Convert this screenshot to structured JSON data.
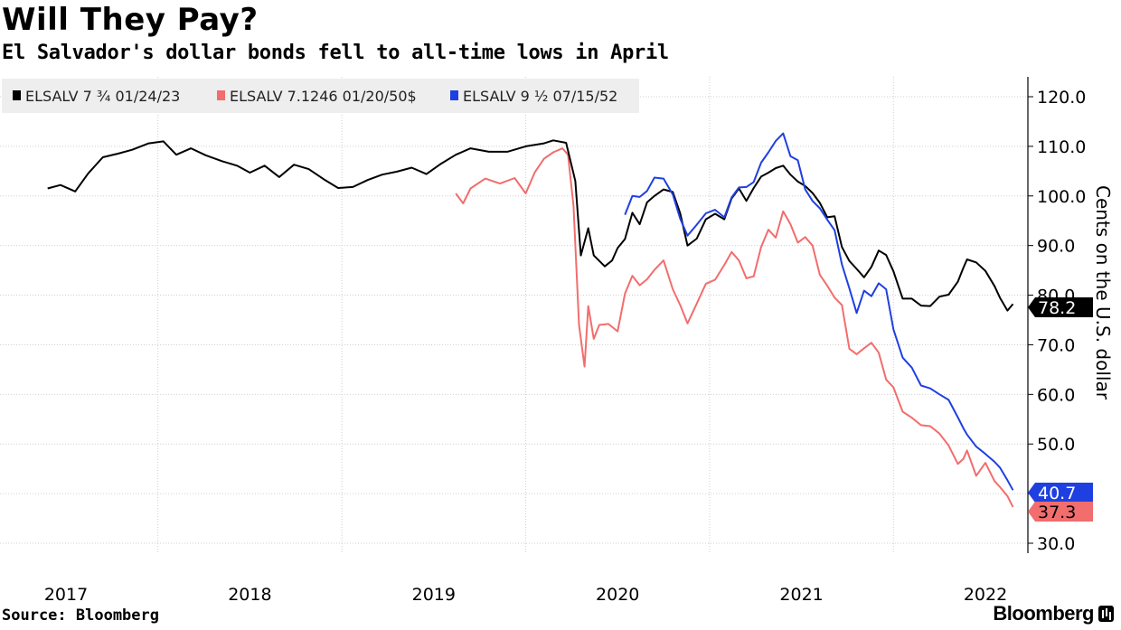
{
  "header": {
    "title": "Will They Pay?",
    "subtitle": "El Salvador's dollar bonds fell to all-time lows in April"
  },
  "footer": {
    "source": "Source: Bloomberg",
    "brand": "Bloomberg"
  },
  "chart_data": {
    "type": "line",
    "title": "Will They Pay?",
    "subtitle": "El Salvador's dollar bonds fell to all-time lows in April",
    "xlabel": "",
    "ylabel": "Cents on the U.S. dollar",
    "ylim": [
      27,
      125
    ],
    "xlim": [
      2016.9,
      2022.33
    ],
    "yticks": [
      30,
      40,
      50,
      60,
      70,
      80,
      90,
      100,
      110,
      120
    ],
    "ytick_labels": [
      "30.0",
      "40.0",
      "50.0",
      "60.0",
      "70.0",
      "80.0",
      "90.0",
      "100.0",
      "110.0",
      "120.0"
    ],
    "xtick_labels": [
      "2017",
      "2018",
      "2019",
      "2020",
      "2021",
      "2022"
    ],
    "xtick_label_positions": [
      2017.0,
      2018.0,
      2019.0,
      2020.0,
      2021.0,
      2022.0
    ],
    "year_boundaries": [
      2017.5,
      2018.5,
      2019.5,
      2020.5,
      2021.5
    ],
    "grid": true,
    "legend_position": "top-left",
    "series": [
      {
        "name": "ELSALV 7 ¾ 01/24/23",
        "color": "#000000",
        "last_value": "78.2",
        "points": [
          [
            2016.9,
            101.5
          ],
          [
            2016.97,
            102.2
          ],
          [
            2017.05,
            100.9
          ],
          [
            2017.12,
            104.5
          ],
          [
            2017.2,
            107.8
          ],
          [
            2017.28,
            108.5
          ],
          [
            2017.36,
            109.3
          ],
          [
            2017.45,
            110.6
          ],
          [
            2017.53,
            111.0
          ],
          [
            2017.6,
            108.3
          ],
          [
            2017.68,
            109.6
          ],
          [
            2017.76,
            108.2
          ],
          [
            2017.85,
            107.0
          ],
          [
            2017.93,
            106.1
          ],
          [
            2018.0,
            104.7
          ],
          [
            2018.08,
            106.1
          ],
          [
            2018.16,
            103.8
          ],
          [
            2018.24,
            106.3
          ],
          [
            2018.32,
            105.4
          ],
          [
            2018.4,
            103.4
          ],
          [
            2018.48,
            101.6
          ],
          [
            2018.56,
            101.8
          ],
          [
            2018.64,
            103.2
          ],
          [
            2018.72,
            104.3
          ],
          [
            2018.8,
            104.9
          ],
          [
            2018.88,
            105.7
          ],
          [
            2018.96,
            104.4
          ],
          [
            2019.04,
            106.5
          ],
          [
            2019.12,
            108.3
          ],
          [
            2019.2,
            109.6
          ],
          [
            2019.3,
            108.9
          ],
          [
            2019.4,
            108.9
          ],
          [
            2019.5,
            110.0
          ],
          [
            2019.6,
            110.6
          ],
          [
            2019.65,
            111.2
          ],
          [
            2019.72,
            110.7
          ],
          [
            2019.77,
            103.0
          ],
          [
            2019.8,
            88.0
          ],
          [
            2019.84,
            93.5
          ],
          [
            2019.87,
            88.0
          ],
          [
            2019.93,
            85.8
          ],
          [
            2019.97,
            87.0
          ],
          [
            2020.0,
            89.5
          ],
          [
            2020.04,
            91.3
          ],
          [
            2020.08,
            96.6
          ],
          [
            2020.12,
            94.3
          ],
          [
            2020.16,
            98.7
          ],
          [
            2020.2,
            100.0
          ],
          [
            2020.25,
            101.3
          ],
          [
            2020.3,
            100.8
          ],
          [
            2020.34,
            96.5
          ],
          [
            2020.38,
            90.0
          ],
          [
            2020.43,
            91.4
          ],
          [
            2020.48,
            95.3
          ],
          [
            2020.53,
            96.4
          ],
          [
            2020.58,
            95.3
          ],
          [
            2020.62,
            99.5
          ],
          [
            2020.66,
            101.5
          ],
          [
            2020.7,
            99.0
          ],
          [
            2020.74,
            101.6
          ],
          [
            2020.78,
            103.9
          ],
          [
            2020.82,
            104.7
          ],
          [
            2020.86,
            105.6
          ],
          [
            2020.9,
            106.1
          ],
          [
            2020.94,
            104.3
          ],
          [
            2020.98,
            102.9
          ],
          [
            2021.02,
            102.0
          ],
          [
            2021.06,
            100.6
          ],
          [
            2021.1,
            98.6
          ],
          [
            2021.14,
            95.7
          ],
          [
            2021.18,
            95.9
          ],
          [
            2021.22,
            89.7
          ],
          [
            2021.26,
            86.9
          ],
          [
            2021.3,
            85.3
          ],
          [
            2021.34,
            83.6
          ],
          [
            2021.38,
            85.7
          ],
          [
            2021.42,
            89.0
          ],
          [
            2021.46,
            88.1
          ],
          [
            2021.5,
            84.8
          ],
          [
            2021.55,
            79.3
          ],
          [
            2021.6,
            79.3
          ],
          [
            2021.65,
            77.9
          ],
          [
            2021.7,
            77.8
          ],
          [
            2021.75,
            79.7
          ],
          [
            2021.8,
            80.1
          ],
          [
            2021.85,
            82.7
          ],
          [
            2021.88,
            85.5
          ],
          [
            2021.9,
            87.2
          ],
          [
            2021.95,
            86.6
          ],
          [
            2022.0,
            84.9
          ],
          [
            2022.05,
            81.8
          ],
          [
            2022.08,
            79.4
          ],
          [
            2022.12,
            76.9
          ],
          [
            2022.15,
            78.2
          ]
        ]
      },
      {
        "name": "ELSALV 7.1246 01/20/50$",
        "color": "#f26d6d",
        "last_value": "37.3",
        "points": [
          [
            2019.12,
            100.5
          ],
          [
            2019.16,
            98.5
          ],
          [
            2019.2,
            101.5
          ],
          [
            2019.28,
            103.5
          ],
          [
            2019.36,
            102.5
          ],
          [
            2019.44,
            103.6
          ],
          [
            2019.5,
            100.5
          ],
          [
            2019.55,
            104.8
          ],
          [
            2019.6,
            107.5
          ],
          [
            2019.65,
            108.8
          ],
          [
            2019.7,
            109.6
          ],
          [
            2019.73,
            108.3
          ],
          [
            2019.76,
            98.0
          ],
          [
            2019.79,
            74.0
          ],
          [
            2019.82,
            65.6
          ],
          [
            2019.84,
            77.8
          ],
          [
            2019.87,
            71.2
          ],
          [
            2019.9,
            74.0
          ],
          [
            2019.95,
            74.2
          ],
          [
            2020.0,
            72.7
          ],
          [
            2020.04,
            80.3
          ],
          [
            2020.08,
            83.9
          ],
          [
            2020.12,
            82.0
          ],
          [
            2020.16,
            83.2
          ],
          [
            2020.2,
            85.1
          ],
          [
            2020.25,
            87.0
          ],
          [
            2020.3,
            81.2
          ],
          [
            2020.34,
            78.0
          ],
          [
            2020.38,
            74.3
          ],
          [
            2020.43,
            78.3
          ],
          [
            2020.48,
            82.3
          ],
          [
            2020.53,
            83.1
          ],
          [
            2020.58,
            86.1
          ],
          [
            2020.62,
            88.7
          ],
          [
            2020.66,
            87.0
          ],
          [
            2020.7,
            83.4
          ],
          [
            2020.74,
            83.8
          ],
          [
            2020.78,
            89.7
          ],
          [
            2020.82,
            93.2
          ],
          [
            2020.86,
            91.6
          ],
          [
            2020.9,
            96.9
          ],
          [
            2020.94,
            94.3
          ],
          [
            2020.98,
            90.6
          ],
          [
            2021.02,
            91.7
          ],
          [
            2021.06,
            90.0
          ],
          [
            2021.1,
            84.1
          ],
          [
            2021.14,
            81.9
          ],
          [
            2021.18,
            79.5
          ],
          [
            2021.22,
            78.0
          ],
          [
            2021.26,
            69.2
          ],
          [
            2021.3,
            68.1
          ],
          [
            2021.34,
            69.3
          ],
          [
            2021.38,
            70.4
          ],
          [
            2021.42,
            68.4
          ],
          [
            2021.46,
            63.0
          ],
          [
            2021.5,
            61.4
          ],
          [
            2021.55,
            56.5
          ],
          [
            2021.6,
            55.3
          ],
          [
            2021.65,
            53.8
          ],
          [
            2021.7,
            53.6
          ],
          [
            2021.75,
            52.1
          ],
          [
            2021.8,
            49.7
          ],
          [
            2021.85,
            46.0
          ],
          [
            2021.88,
            47.0
          ],
          [
            2021.9,
            48.7
          ],
          [
            2021.95,
            43.6
          ],
          [
            2022.0,
            46.2
          ],
          [
            2022.05,
            42.5
          ],
          [
            2022.08,
            41.3
          ],
          [
            2022.12,
            39.5
          ],
          [
            2022.15,
            37.3
          ]
        ]
      },
      {
        "name": "ELSALV 9 ½ 07/15/52",
        "color": "#1f40e0",
        "last_value": "40.7",
        "points": [
          [
            2020.04,
            96.2
          ],
          [
            2020.08,
            100.0
          ],
          [
            2020.12,
            99.8
          ],
          [
            2020.16,
            101.0
          ],
          [
            2020.2,
            103.7
          ],
          [
            2020.25,
            103.5
          ],
          [
            2020.3,
            100.3
          ],
          [
            2020.34,
            95.4
          ],
          [
            2020.38,
            92.0
          ],
          [
            2020.43,
            94.2
          ],
          [
            2020.48,
            96.5
          ],
          [
            2020.53,
            97.2
          ],
          [
            2020.58,
            95.7
          ],
          [
            2020.62,
            99.7
          ],
          [
            2020.66,
            101.7
          ],
          [
            2020.7,
            101.8
          ],
          [
            2020.74,
            102.8
          ],
          [
            2020.78,
            106.7
          ],
          [
            2020.82,
            108.8
          ],
          [
            2020.86,
            111.1
          ],
          [
            2020.9,
            112.6
          ],
          [
            2020.94,
            108.0
          ],
          [
            2020.98,
            107.2
          ],
          [
            2021.02,
            101.3
          ],
          [
            2021.06,
            99.0
          ],
          [
            2021.1,
            97.5
          ],
          [
            2021.14,
            95.2
          ],
          [
            2021.18,
            93.1
          ],
          [
            2021.22,
            86.2
          ],
          [
            2021.26,
            81.4
          ],
          [
            2021.3,
            76.4
          ],
          [
            2021.34,
            80.9
          ],
          [
            2021.38,
            79.8
          ],
          [
            2021.42,
            82.4
          ],
          [
            2021.46,
            81.2
          ],
          [
            2021.5,
            73.1
          ],
          [
            2021.55,
            67.4
          ],
          [
            2021.6,
            65.4
          ],
          [
            2021.65,
            61.8
          ],
          [
            2021.7,
            61.2
          ],
          [
            2021.75,
            60.0
          ],
          [
            2021.8,
            58.9
          ],
          [
            2021.85,
            55.4
          ],
          [
            2021.88,
            53.2
          ],
          [
            2021.9,
            51.9
          ],
          [
            2021.95,
            49.5
          ],
          [
            2022.0,
            48.0
          ],
          [
            2022.05,
            46.4
          ],
          [
            2022.08,
            45.2
          ],
          [
            2022.12,
            42.7
          ],
          [
            2022.15,
            40.7
          ]
        ]
      }
    ]
  }
}
